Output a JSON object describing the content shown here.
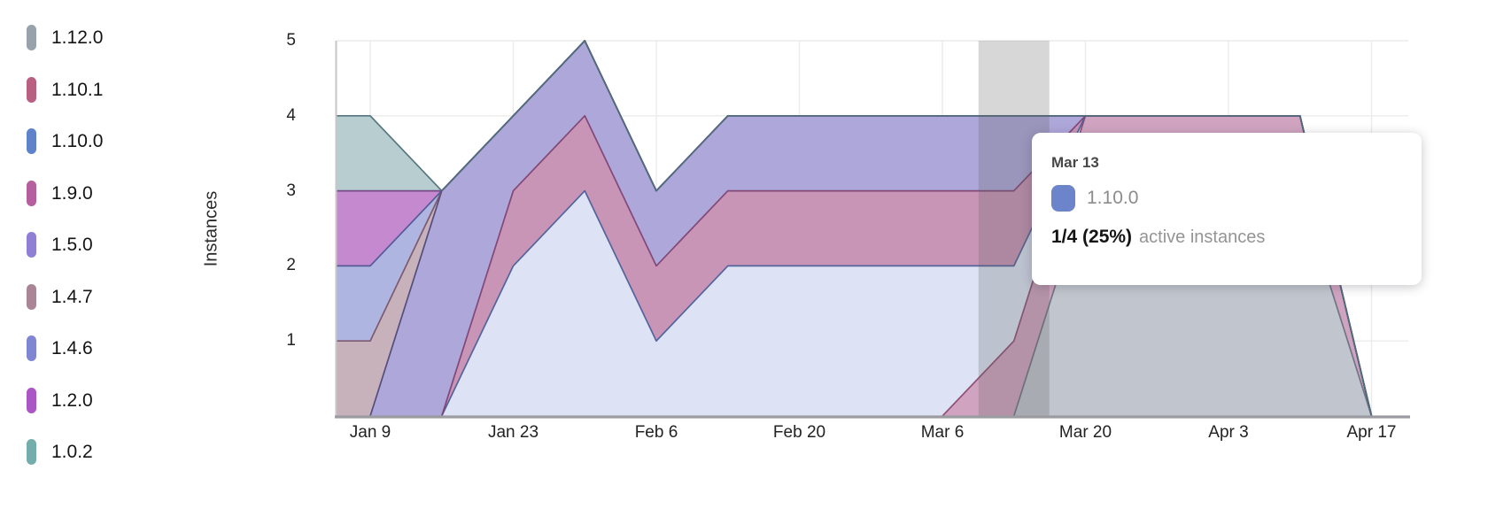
{
  "legend": {
    "items": [
      {
        "label": "1.12.0",
        "color": "#98a2ac"
      },
      {
        "label": "1.10.1",
        "color": "#b95f81"
      },
      {
        "label": "1.10.0",
        "color": "#5e83cb"
      },
      {
        "label": "1.9.0",
        "color": "#b55f9f"
      },
      {
        "label": "1.5.0",
        "color": "#9080d5"
      },
      {
        "label": "1.4.7",
        "color": "#aa8595"
      },
      {
        "label": "1.4.6",
        "color": "#7f87d2"
      },
      {
        "label": "1.2.0",
        "color": "#aa56c5"
      },
      {
        "label": "1.0.2",
        "color": "#74aeac"
      }
    ]
  },
  "chart_data": {
    "type": "area",
    "stacked": true,
    "title": "",
    "xlabel": "",
    "ylabel": "Instances",
    "ylim": [
      0,
      5
    ],
    "grid": true,
    "legend_position": "left",
    "y_ticks": [
      1,
      2,
      3,
      4,
      5
    ],
    "x_tick_labels": [
      "Jan 9",
      "Jan 23",
      "Feb 6",
      "Feb 20",
      "Mar 6",
      "Mar 20",
      "Apr 3",
      "Apr 17"
    ],
    "x_points": [
      "edge",
      "Jan 9",
      "Jan 16",
      "Jan 23",
      "Jan 30",
      "Feb 6",
      "Feb 13",
      "Feb 20",
      "Feb 27",
      "Mar 6",
      "Mar 13",
      "Mar 20",
      "Mar 27",
      "Apr 3",
      "Apr 10",
      "Apr 17"
    ],
    "highlighted_x": "Mar 13",
    "highlight_color": "#5f5f5f",
    "stack_order": "bottom_to_top",
    "series": [
      {
        "name": "1.12.0",
        "fill": "#c1c6ce",
        "stroke": "#6b7280",
        "values": [
          0,
          0,
          0,
          0,
          0,
          0,
          0,
          0,
          0,
          0,
          0,
          3,
          3,
          3,
          3,
          0
        ]
      },
      {
        "name": "1.10.1",
        "fill": "#d0a4c0",
        "stroke": "#8d4a70",
        "values": [
          0,
          0,
          0,
          0,
          0,
          0,
          0,
          0,
          0,
          0,
          1,
          1,
          1,
          1,
          1,
          0
        ]
      },
      {
        "name": "1.10.0",
        "fill": "#dde3f4",
        "stroke": "#4c5f99",
        "values": [
          0,
          0,
          0,
          2,
          3,
          1,
          2,
          2,
          2,
          2,
          1,
          0,
          0,
          0,
          0,
          0
        ]
      },
      {
        "name": "1.9.0",
        "fill": "#c995b7",
        "stroke": "#7e4273",
        "values": [
          0,
          0,
          0,
          1,
          1,
          1,
          1,
          1,
          1,
          1,
          1,
          0,
          0,
          0,
          0,
          0
        ]
      },
      {
        "name": "1.5.0",
        "fill": "#aea7da",
        "stroke": "#4f4878",
        "values": [
          0,
          0,
          3,
          1,
          1,
          1,
          1,
          1,
          1,
          1,
          1,
          0,
          0,
          0,
          0,
          0
        ]
      },
      {
        "name": "1.4.7",
        "fill": "#c7b1bb",
        "stroke": "#7a5468",
        "values": [
          1,
          1,
          0,
          0,
          0,
          0,
          0,
          0,
          0,
          0,
          0,
          0,
          0,
          0,
          0,
          0
        ]
      },
      {
        "name": "1.4.6",
        "fill": "#afb5e1",
        "stroke": "#4f5694",
        "values": [
          1,
          1,
          0,
          0,
          0,
          0,
          0,
          0,
          0,
          0,
          0,
          0,
          0,
          0,
          0,
          0
        ]
      },
      {
        "name": "1.2.0",
        "fill": "#c489cf",
        "stroke": "#6f4585",
        "values": [
          1,
          1,
          0,
          0,
          0,
          0,
          0,
          0,
          0,
          0,
          0,
          0,
          0,
          0,
          0,
          0
        ]
      },
      {
        "name": "1.0.2",
        "fill": "#b7cdd0",
        "stroke": "#4e707a",
        "values": [
          1,
          1,
          0,
          0,
          0,
          0,
          0,
          0,
          0,
          0,
          0,
          0,
          0,
          0,
          0,
          0
        ]
      }
    ]
  },
  "tooltip": {
    "date": "Mar 13",
    "series": "1.10.0",
    "swatch_color": "#6b84ca",
    "value": "1/4 (25%)",
    "caption": "active instances"
  }
}
